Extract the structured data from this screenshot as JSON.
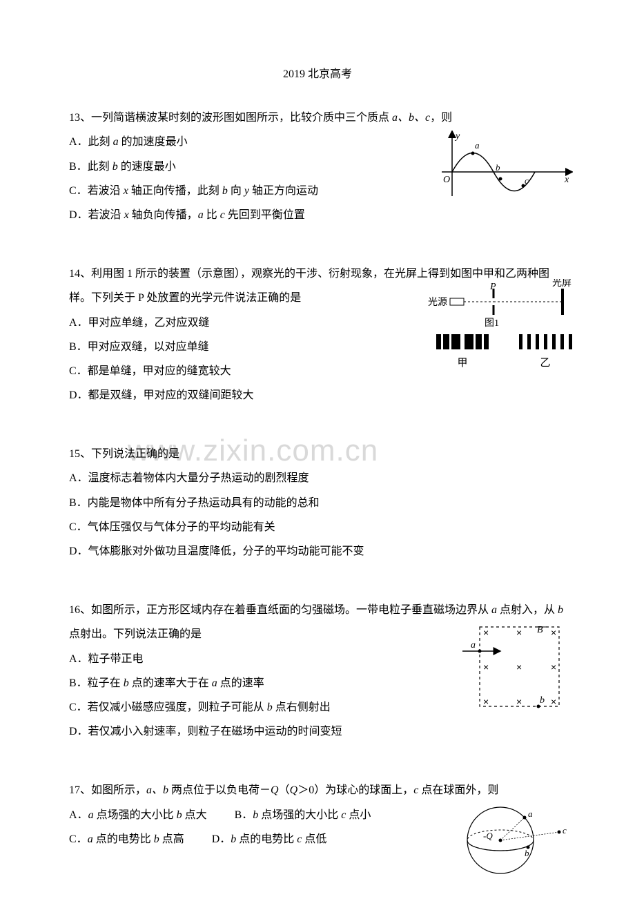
{
  "title": "2019 北京高考",
  "watermark": "www.zixin.com.cn",
  "q13": {
    "intro_pre": "13、一列简谐横波某时刻的波形图如图所示，比较介质中三个质点 ",
    "intro_ital": "a、b、c",
    "intro_post": "，则",
    "optA_pre": "A．此刻 ",
    "optA_ital": "a",
    "optA_post": " 的加速度最小",
    "optB_pre": "B．此刻 ",
    "optB_ital": "b",
    "optB_post": " 的速度最小",
    "optC_pre": "C．若波沿 ",
    "optC_ital1": "x",
    "optC_mid": " 轴正向传播，此刻 ",
    "optC_ital2": "b",
    "optC_mid2": " 向 ",
    "optC_ital3": "y",
    "optC_post": " 轴正方向运动",
    "optD_pre": "D．若波沿 ",
    "optD_ital1": "x",
    "optD_mid": " 轴负向传播，",
    "optD_ital2": "a",
    "optD_mid2": " 比 ",
    "optD_ital3": "c",
    "optD_post": " 先回到平衡位置",
    "fig": {
      "axis_color": "#000000",
      "label_y": "y",
      "label_x": "x",
      "label_O": "O",
      "label_a": "a",
      "label_b": "b",
      "label_c": "c"
    }
  },
  "q14": {
    "intro": "14、利用图 1 所示的装置（示意图），观察光的干涉、衍射现象，在光屏上得到如图中甲和乙两种图样。下列关于 P 处放置的光学元件说法正确的是",
    "optA": "A．甲对应单缝，乙对应双缝",
    "optB": "B．甲对应双缝，以对应单缝",
    "optC": "C．都是单缝，甲对应的缝宽较大",
    "optD": "D．都是双缝，甲对应的双缝间距较大",
    "fig": {
      "label_source": "光源",
      "label_P": "P",
      "label_screen": "光屏",
      "label_fig1": "图1",
      "label_jia": "甲",
      "label_yi": "乙",
      "jia_widths": [
        7,
        9,
        13,
        13,
        9,
        7
      ],
      "jia_gaps": [
        3,
        3,
        6,
        3,
        3
      ],
      "yi_widths": [
        5,
        5,
        5,
        5,
        5,
        5,
        5
      ],
      "yi_gaps": [
        7,
        7,
        7,
        7,
        7,
        7
      ]
    }
  },
  "q15": {
    "intro": "15、下列说法正确的是",
    "optA": "A．温度标志着物体内大量分子热运动的剧烈程度",
    "optB": "B．内能是物体中所有分子热运动具有的动能的总和",
    "optC": "C．气体压强仅与气体分子的平均动能有关",
    "optD": "D．气体膨胀对外做功且温度降低，分子的平均动能可能不变"
  },
  "q16": {
    "intro_pre": "16、如图所示，正方形区域内存在着垂直纸面的匀强磁场。一带电粒子垂直磁场边界从 ",
    "intro_ital1": "a",
    "intro_mid": " 点射入，从 ",
    "intro_ital2": "b",
    "intro_post": " 点射出。下列说法正确的是",
    "optA": "A．粒子带正电",
    "optB_pre": "B．粒子在 ",
    "optB_ital1": "b",
    "optB_mid": " 点的速率大于在 ",
    "optB_ital2": "a",
    "optB_post": " 点的速率",
    "optC_pre": "C．若仅减小磁感应强度，则粒子可能从 ",
    "optC_ital": "b",
    "optC_post": " 点右侧射出",
    "optD": "D．若仅减小入射速率，则粒子在磁场中运动的时间变短",
    "fig": {
      "label_B": "B",
      "label_a": "a",
      "label_b": "b"
    }
  },
  "q17": {
    "intro_pre": "17、如图所示，",
    "intro_ital1": "a、b",
    "intro_mid1": " 两点位于以负电荷－",
    "intro_ital2": "Q",
    "intro_mid2": "（",
    "intro_ital3": "Q",
    "intro_mid3": "＞0）为球心的球面上，",
    "intro_ital4": "c",
    "intro_post": " 点在球面外，则",
    "optA_pre": "A．",
    "optA_ital1": "a",
    "optA_mid": " 点场强的大小比 ",
    "optA_ital2": "b",
    "optA_post": " 点大",
    "optB_pre": "B．",
    "optB_ital1": "b",
    "optB_mid": " 点场强的大小比 ",
    "optB_ital2": "c",
    "optB_post": " 点小",
    "optC_pre": "C．",
    "optC_ital1": "a",
    "optC_mid": " 点的电势比 ",
    "optC_ital2": "b",
    "optC_post": " 点高",
    "optD_pre": "D．",
    "optD_ital1": "b",
    "optD_mid": " 点的电势比 ",
    "optD_ital2": "c",
    "optD_post": " 点低",
    "fig": {
      "label_Q": "-Q",
      "label_a": "a",
      "label_b": "b",
      "label_c": "c"
    }
  }
}
